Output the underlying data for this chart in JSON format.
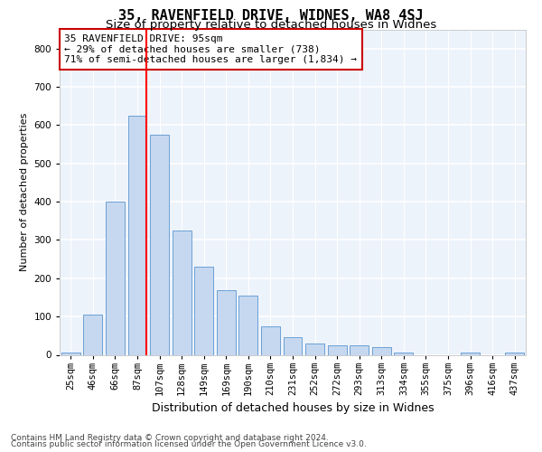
{
  "title1": "35, RAVENFIELD DRIVE, WIDNES, WA8 4SJ",
  "title2": "Size of property relative to detached houses in Widnes",
  "xlabel": "Distribution of detached houses by size in Widnes",
  "ylabel": "Number of detached properties",
  "footer1": "Contains HM Land Registry data © Crown copyright and database right 2024.",
  "footer2": "Contains public sector information licensed under the Open Government Licence v3.0.",
  "annotation_line1": "35 RAVENFIELD DRIVE: 95sqm",
  "annotation_line2": "← 29% of detached houses are smaller (738)",
  "annotation_line3": "71% of semi-detached houses are larger (1,834) →",
  "bar_color": "#c5d8f0",
  "bar_edge_color": "#6ca0d4",
  "red_line_x": 3,
  "categories": [
    "25sqm",
    "46sqm",
    "66sqm",
    "87sqm",
    "107sqm",
    "128sqm",
    "149sqm",
    "169sqm",
    "190sqm",
    "210sqm",
    "231sqm",
    "252sqm",
    "272sqm",
    "293sqm",
    "313sqm",
    "334sqm",
    "355sqm",
    "375sqm",
    "396sqm",
    "416sqm",
    "437sqm"
  ],
  "values": [
    5,
    105,
    400,
    625,
    575,
    325,
    230,
    170,
    155,
    75,
    45,
    30,
    25,
    25,
    20,
    5,
    0,
    0,
    5,
    0,
    5
  ],
  "ylim": [
    0,
    850
  ],
  "yticks": [
    0,
    100,
    200,
    300,
    400,
    500,
    600,
    700,
    800
  ],
  "bg_color": "#edf3fb",
  "grid_color": "#ffffff",
  "annotation_box_color": "#ffffff",
  "annotation_box_edge": "#cc0000",
  "title1_fontsize": 11,
  "title2_fontsize": 9.5,
  "xlabel_fontsize": 9,
  "ylabel_fontsize": 8,
  "tick_fontsize": 7.5,
  "annotation_fontsize": 8,
  "footer_fontsize": 6.5
}
